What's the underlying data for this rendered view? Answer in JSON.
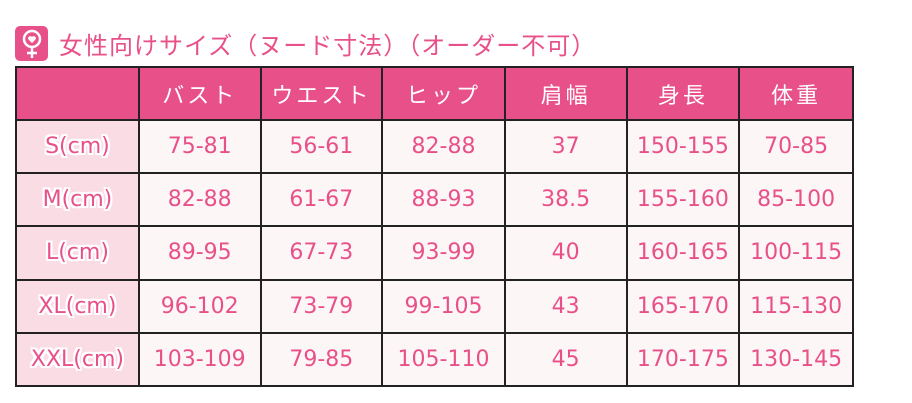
{
  "title": "女性向けサイズ（ヌード寸法）（オーダー不可）",
  "icon": "female-heart-icon",
  "colors": {
    "accent": "#e8508a",
    "label_bg": "#fadde4",
    "cell_bg": "#fdf6f6"
  },
  "headers": [
    "",
    "バスト",
    "ウエスト",
    "ヒップ",
    "肩幅",
    "身長",
    "体重"
  ],
  "rows": [
    [
      "S(cm)",
      "75-81",
      "56-61",
      "82-88",
      "37",
      "150-155",
      "70-85"
    ],
    [
      "M(cm)",
      "82-88",
      "61-67",
      "88-93",
      "38.5",
      "155-160",
      "85-100"
    ],
    [
      "L(cm)",
      "89-95",
      "67-73",
      "93-99",
      "40",
      "160-165",
      "100-115"
    ],
    [
      "XL(cm)",
      "96-102",
      "73-79",
      "99-105",
      "43",
      "165-170",
      "115-130"
    ],
    [
      "XXL(cm)",
      "103-109",
      "79-85",
      "105-110",
      "45",
      "170-175",
      "130-145"
    ]
  ]
}
